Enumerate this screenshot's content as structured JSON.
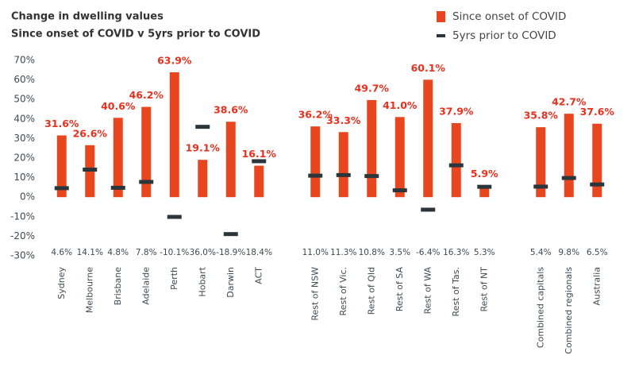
{
  "chart_data": {
    "type": "bar",
    "title": "Change in dwelling values",
    "subtitle": "Since onset of COVID v 5yrs prior to COVID",
    "categories": [
      "Sydney",
      "Melbourne",
      "Brisbane",
      "Adelaide",
      "Perth",
      "Hobart",
      "Darwin",
      "ACT",
      null,
      "Rest of NSW",
      "Rest of Vic.",
      "Rest of Qld",
      "Rest of SA",
      "Rest of WA",
      "Rest of Tas.",
      "Rest of NT",
      null,
      "Combined capitals",
      "Combined regionals",
      "Australia"
    ],
    "series": [
      {
        "name": "Since onset of COVID",
        "color": "#e8461e",
        "marker": "bar",
        "values": [
          31.6,
          26.6,
          40.6,
          46.2,
          63.9,
          19.1,
          38.6,
          16.1,
          null,
          36.2,
          33.3,
          49.7,
          41.0,
          60.1,
          37.9,
          5.9,
          null,
          35.8,
          42.7,
          37.6
        ],
        "value_labels": [
          "31.6%",
          "26.6%",
          "40.6%",
          "46.2%",
          "63.9%",
          "19.1%",
          "38.6%",
          "16.1%",
          null,
          "36.2%",
          "33.3%",
          "49.7%",
          "41.0%",
          "60.1%",
          "37.9%",
          "5.9%",
          null,
          "35.8%",
          "42.7%",
          "37.6%"
        ]
      },
      {
        "name": "5yrs prior to COVID",
        "color": "#2b363c",
        "marker": "dash",
        "values": [
          4.6,
          14.1,
          4.8,
          7.8,
          -10.1,
          36.0,
          -18.9,
          18.4,
          null,
          11.0,
          11.3,
          10.8,
          3.5,
          -6.4,
          16.3,
          5.3,
          null,
          5.4,
          9.8,
          6.5
        ],
        "value_labels": [
          "4.6%",
          "14.1%",
          "4.8%",
          "7.8%",
          "-10.1%",
          "36.0%",
          "-18.9%",
          "18.4%",
          null,
          "11.0%",
          "11.3%",
          "10.8%",
          "3.5%",
          "-6.4%",
          "16.3%",
          "5.3%",
          null,
          "5.4%",
          "9.8%",
          "6.5%"
        ]
      }
    ],
    "ylim": [
      -30,
      70
    ],
    "yticks": [
      {
        "value": 70,
        "label": "70%"
      },
      {
        "value": 60,
        "label": "60%"
      },
      {
        "value": 50,
        "label": "50%"
      },
      {
        "value": 40,
        "label": "40%"
      },
      {
        "value": 30,
        "label": "30%"
      },
      {
        "value": 20,
        "label": "20%"
      },
      {
        "value": 10,
        "label": "10%"
      },
      {
        "value": 0,
        "label": "0%"
      },
      {
        "value": -10,
        "label": "-10%"
      },
      {
        "value": -20,
        "label": "-20%"
      },
      {
        "value": -30,
        "label": "-30%"
      }
    ],
    "grid": false,
    "legend": "upper right"
  }
}
